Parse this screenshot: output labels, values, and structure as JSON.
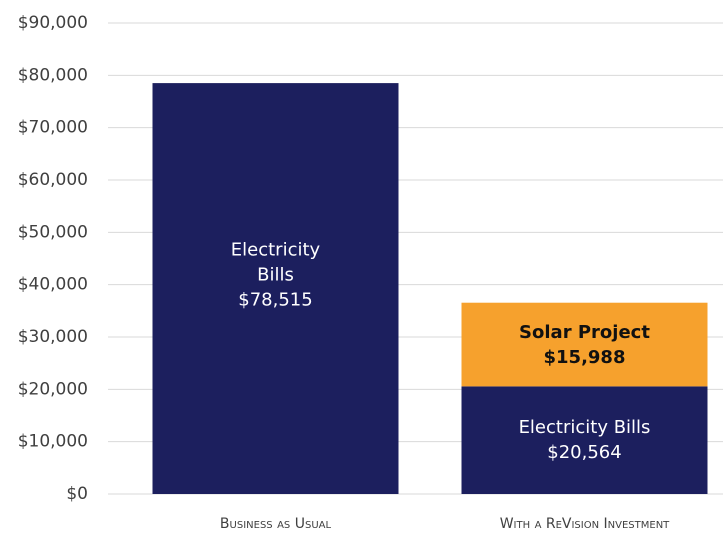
{
  "chart_data": {
    "type": "stacked_bar",
    "categories": [
      "Business as Usual",
      "With a ReVision Investment"
    ],
    "series": [
      {
        "name": "Electricity Bills",
        "color": "#1c1f5e",
        "values": [
          78515,
          20564
        ],
        "value_labels": [
          "$78,515",
          "$20,564"
        ]
      },
      {
        "name": "Solar Project",
        "color": "#f6a12d",
        "values": [
          null,
          15988
        ],
        "value_labels": [
          null,
          "$15,988"
        ]
      }
    ],
    "ylim": [
      0,
      90000
    ],
    "yticks": [
      {
        "value": 0,
        "label": "$0"
      },
      {
        "value": 10000,
        "label": "$10,000"
      },
      {
        "value": 20000,
        "label": "$20,000"
      },
      {
        "value": 30000,
        "label": "$30,000"
      },
      {
        "value": 40000,
        "label": "$40,000"
      },
      {
        "value": 50000,
        "label": "$50,000"
      },
      {
        "value": 60000,
        "label": "$60,000"
      },
      {
        "value": 70000,
        "label": "$70,000"
      },
      {
        "value": 80000,
        "label": "$80,000"
      },
      {
        "value": 90000,
        "label": "$90,000"
      }
    ],
    "grid": true
  }
}
